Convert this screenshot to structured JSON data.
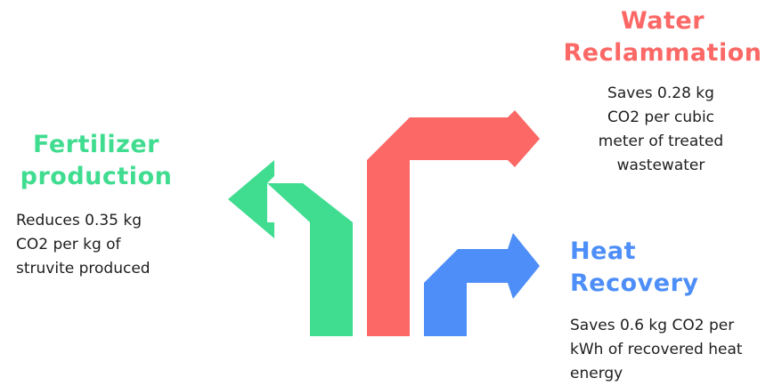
{
  "colors": {
    "green": "#40dc90",
    "red": "#fb6865",
    "blue": "#4d8ef8",
    "text": "#1e1e1e"
  },
  "fertilizer": {
    "title_lines": [
      "Fertilizer",
      "production"
    ],
    "desc_lines": [
      "Reduces 0.35 kg",
      "CO2 per kg of",
      "struvite produced"
    ]
  },
  "water": {
    "title_lines": [
      "Water",
      "Reclammation"
    ],
    "desc_lines": [
      "Saves 0.28 kg",
      "CO2 per cubic",
      "meter of treated",
      "wastewater"
    ]
  },
  "heat": {
    "title_lines": [
      "Heat",
      "Recovery"
    ],
    "desc_lines": [
      "Saves 0.6 kg CO2 per",
      "kWh of recovered heat",
      "energy"
    ]
  }
}
